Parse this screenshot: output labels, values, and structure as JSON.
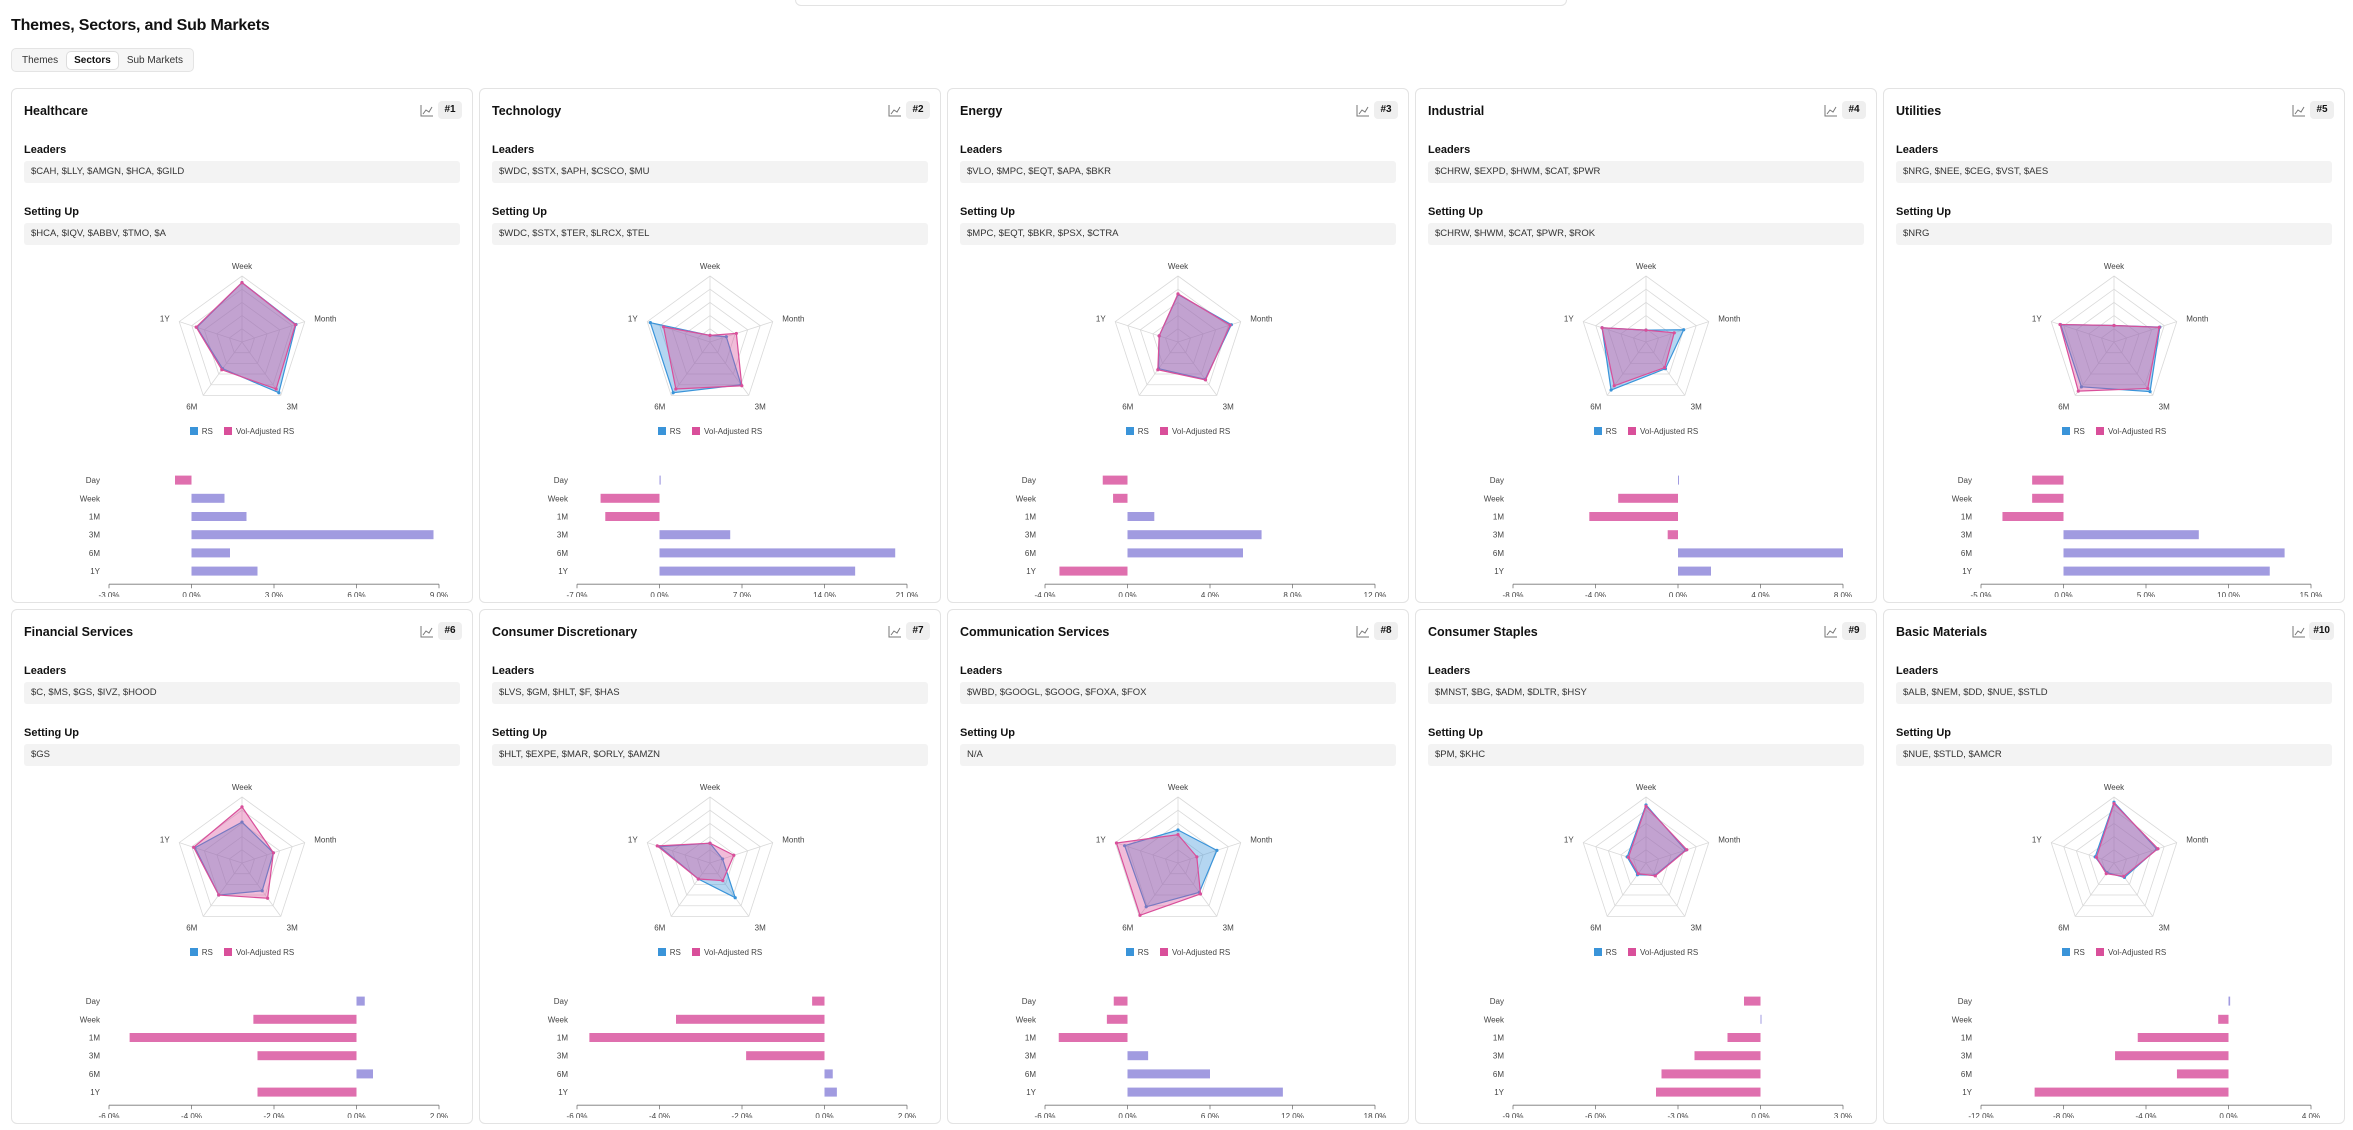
{
  "page": {
    "title": "Themes, Sectors, and Sub Markets"
  },
  "tabs": [
    {
      "label": "Themes",
      "active": false
    },
    {
      "label": "Sectors",
      "active": true
    },
    {
      "label": "Sub Markets",
      "active": false
    }
  ],
  "colors": {
    "rs": "#3a94d9",
    "vol": "#d94f9a",
    "bar_pos": "#a19be0",
    "bar_neg": "#df6fae"
  },
  "labels": {
    "leaders": "Leaders",
    "setting_up": "Setting Up"
  },
  "legend": {
    "rs": "RS",
    "vol": "Vol-Adjusted RS"
  },
  "radar_axes": [
    "Week",
    "Month",
    "3M",
    "6M",
    "1Y"
  ],
  "bar_categories": [
    "Day",
    "Week",
    "1M",
    "3M",
    "6M",
    "1Y"
  ],
  "cards": [
    {
      "name": "Healthcare",
      "rank": "#1",
      "leaders": "$CAH, $LLY, $AMGN, $HCA, $GILD",
      "setting_up": "$HCA, $IQV, $ABBV, $TMO, $A",
      "rs": [
        0.9,
        0.86,
        0.95,
        0.5,
        0.72
      ],
      "vol": [
        0.9,
        0.85,
        0.88,
        0.52,
        0.73
      ],
      "bars": [
        -0.6,
        1.2,
        2.0,
        8.8,
        1.4,
        2.4
      ],
      "ticks": [
        "-3.0%",
        "0.0%",
        "3.0%",
        "6.0%",
        "9.0%"
      ],
      "xmin": -3,
      "xmax": 9
    },
    {
      "name": "Technology",
      "rank": "#2",
      "leaders": "$WDC, $STX, $APH, $CSCO, $MU",
      "setting_up": "$WDC, $STX, $TER, $LRCX, $TEL",
      "rs": [
        0.1,
        0.26,
        0.8,
        0.95,
        0.95
      ],
      "vol": [
        0.1,
        0.42,
        0.82,
        0.88,
        0.74
      ],
      "bars": [
        0.1,
        -5.0,
        -4.6,
        6.0,
        20.0,
        16.6
      ],
      "ticks": [
        "-7.0%",
        "0.0%",
        "7.0%",
        "14.0%",
        "21.0%"
      ],
      "xmin": -7,
      "xmax": 21
    },
    {
      "name": "Energy",
      "rank": "#3",
      "leaders": "$VLO, $MPC, $EQT, $APA, $BKR",
      "setting_up": "$MPC, $EQT, $BKR, $PSX, $CTRA",
      "rs": [
        0.72,
        0.85,
        0.7,
        0.5,
        0.3
      ],
      "vol": [
        0.73,
        0.83,
        0.71,
        0.52,
        0.3
      ],
      "bars": [
        -1.2,
        -0.7,
        1.3,
        6.5,
        5.6,
        -3.3
      ],
      "ticks": [
        "-4.0%",
        "0.0%",
        "4.0%",
        "8.0%",
        "12.0%"
      ],
      "xmin": -4,
      "xmax": 12
    },
    {
      "name": "Industrial",
      "rank": "#4",
      "leaders": "$CHRW, $EXPD, $HWM, $CAT, $PWR",
      "setting_up": "$CHRW, $HWM, $CAT, $PWR, $ROK",
      "rs": [
        0.18,
        0.6,
        0.5,
        0.9,
        0.7
      ],
      "vol": [
        0.18,
        0.45,
        0.48,
        0.82,
        0.7
      ],
      "bars": [
        0,
        -2.9,
        -4.3,
        -0.5,
        8.0,
        1.6
      ],
      "ticks": [
        "-8.0%",
        "-4.0%",
        "0.0%",
        "4.0%",
        "8.0%"
      ],
      "xmin": -8,
      "xmax": 8
    },
    {
      "name": "Utilities",
      "rank": "#5",
      "leaders": "$NRG, $NEE, $CEG, $VST, $AES",
      "setting_up": "$NRG",
      "rs": [
        0.25,
        0.73,
        0.93,
        0.84,
        0.85
      ],
      "vol": [
        0.25,
        0.72,
        0.87,
        0.92,
        0.86
      ],
      "bars": [
        -1.9,
        -1.9,
        -3.7,
        8.2,
        13.4,
        12.5
      ],
      "ticks": [
        "-5.0%",
        "0.0%",
        "5.0%",
        "10.0%",
        "15.0%"
      ],
      "xmin": -5,
      "xmax": 15
    },
    {
      "name": "Financial Services",
      "rank": "#6",
      "leaders": "$C, $MS, $GS, $IVZ, $HOOD",
      "setting_up": "$GS",
      "rs": [
        0.62,
        0.5,
        0.52,
        0.6,
        0.75
      ],
      "vol": [
        0.85,
        0.5,
        0.66,
        0.6,
        0.77
      ],
      "bars": [
        0.2,
        -2.5,
        -5.5,
        -2.4,
        0.4,
        -2.4
      ],
      "ticks": [
        "-6.0%",
        "-4.0%",
        "-2.0%",
        "0.0%",
        "2.0%"
      ],
      "xmin": -6,
      "xmax": 2
    },
    {
      "name": "Consumer Discretionary",
      "rank": "#7",
      "leaders": "$LVS, $GM, $HLT, $F, $HAS",
      "setting_up": "$HLT, $EXPE, $MAR, $ORLY, $AMZN",
      "rs": [
        0.3,
        0.2,
        0.65,
        0.3,
        0.8
      ],
      "vol": [
        0.3,
        0.38,
        0.33,
        0.3,
        0.84
      ],
      "bars": [
        -0.3,
        -3.6,
        -5.7,
        -1.9,
        0.2,
        0.3
      ],
      "ticks": [
        "-6.0%",
        "-4.0%",
        "-2.0%",
        "0.0%",
        "2.0%"
      ],
      "xmin": -6,
      "xmax": 2
    },
    {
      "name": "Communication Services",
      "rank": "#8",
      "leaders": "$WBD, $GOOGL, $GOOG, $FOXA, $FOX",
      "setting_up": "N/A",
      "rs": [
        0.5,
        0.62,
        0.55,
        0.82,
        0.85
      ],
      "vol": [
        0.43,
        0.3,
        0.58,
        0.98,
        0.98
      ],
      "bars": [
        -1.0,
        -1.5,
        -5.0,
        1.5,
        6.0,
        11.3
      ],
      "ticks": [
        "-6.0%",
        "0.0%",
        "6.0%",
        "12.0%",
        "18.0%"
      ],
      "xmin": -6,
      "xmax": 18
    },
    {
      "name": "Consumer Staples",
      "rank": "#9",
      "leaders": "$MNST, $BG, $ADM, $DLTR, $HSY",
      "setting_up": "$PM, $KHC",
      "rs": [
        0.88,
        0.63,
        0.23,
        0.22,
        0.3
      ],
      "vol": [
        0.86,
        0.65,
        0.24,
        0.2,
        0.28
      ],
      "bars": [
        -0.6,
        0.03,
        -1.2,
        -2.4,
        -3.6,
        -3.8
      ],
      "ticks": [
        "-9.0%",
        "-6.0%",
        "-3.0%",
        "0.0%",
        "3.0%"
      ],
      "xmin": -9,
      "xmax": 3
    },
    {
      "name": "Basic Materials",
      "rank": "#10",
      "leaders": "$ALB, $NEM, $DD, $NUE, $STLD",
      "setting_up": "$NUE, $STLD, $AMCR",
      "rs": [
        0.92,
        0.68,
        0.27,
        0.18,
        0.3
      ],
      "vol": [
        0.9,
        0.7,
        0.25,
        0.2,
        0.28
      ],
      "bars": [
        0.08,
        -0.5,
        -4.4,
        -5.5,
        -2.5,
        -9.4
      ],
      "ticks": [
        "-12.0%",
        "-8.0%",
        "-4.0%",
        "0.0%",
        "4.0%"
      ],
      "xmin": -12,
      "xmax": 4
    }
  ]
}
